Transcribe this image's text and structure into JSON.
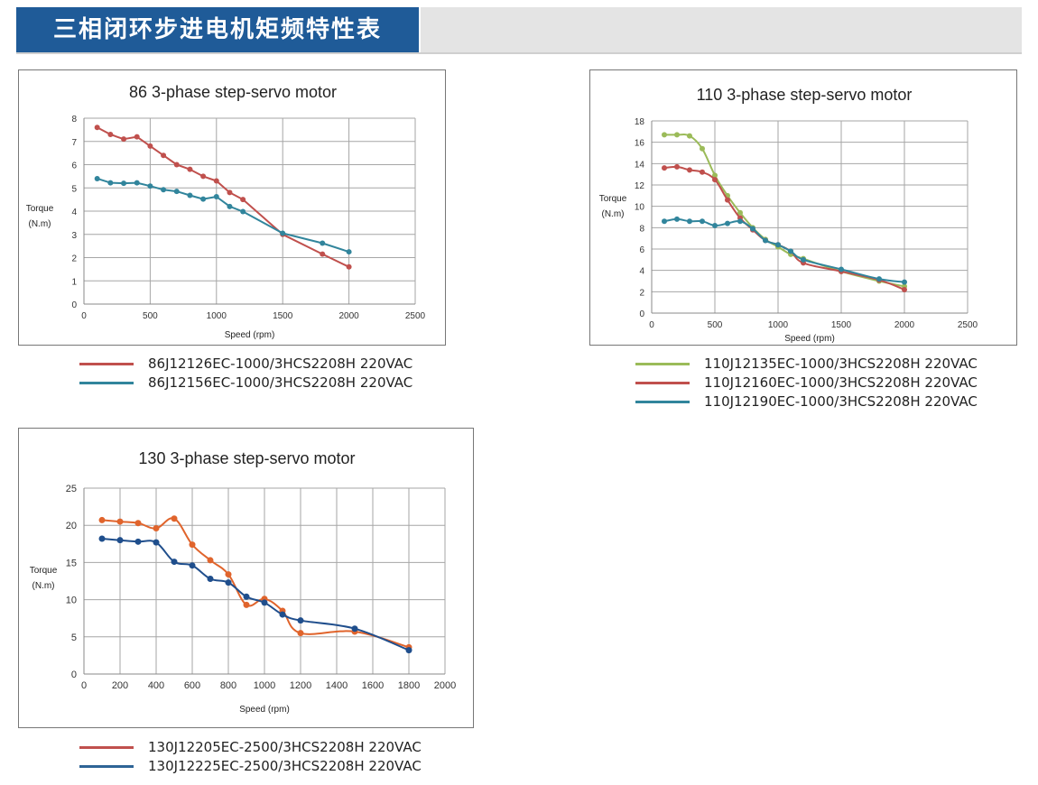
{
  "page": {
    "title": "三相闭环步进电机矩频特性表"
  },
  "colors": {
    "header_bg": "#1f5b98",
    "red": "#c0504d",
    "blue": "#31859c",
    "green": "#9bbb59",
    "orange": "#e0642c",
    "navy": "#1f4e8c",
    "grid": "#a6a6a6"
  },
  "chart_data": [
    {
      "id": "chart86",
      "type": "line",
      "title": "86 3-phase step-servo motor",
      "xlabel": "Speed (rpm)",
      "ylabel": "Torque",
      "ylabel2": "(N.m)",
      "xlim": [
        0,
        2500
      ],
      "ylim": [
        0,
        8
      ],
      "xticks": [
        0,
        500,
        1000,
        1500,
        2000,
        2500
      ],
      "yticks": [
        0,
        1,
        2,
        3,
        4,
        5,
        6,
        7,
        8
      ],
      "grid": true,
      "series": [
        {
          "name": "86J12126EC-1000/3HCS2208H  220VAC",
          "color": "#c0504d",
          "x": [
            100,
            200,
            300,
            400,
            500,
            600,
            700,
            800,
            900,
            1000,
            1100,
            1200,
            1500,
            1800,
            2000
          ],
          "y": [
            7.6,
            7.3,
            7.1,
            7.2,
            6.8,
            6.4,
            6.0,
            5.8,
            5.5,
            5.3,
            4.8,
            4.5,
            3.0,
            2.15,
            1.6
          ]
        },
        {
          "name": "86J12156EC-1000/3HCS2208H  220VAC",
          "color": "#31859c",
          "x": [
            100,
            200,
            300,
            400,
            500,
            600,
            700,
            800,
            900,
            1000,
            1100,
            1200,
            1500,
            1800,
            2000
          ],
          "y": [
            5.4,
            5.22,
            5.2,
            5.22,
            5.08,
            4.92,
            4.85,
            4.68,
            4.52,
            4.62,
            4.2,
            3.98,
            3.05,
            2.62,
            2.25
          ]
        }
      ]
    },
    {
      "id": "chart110",
      "type": "line",
      "title": "110 3-phase step-servo motor",
      "xlabel": "Speed (rpm)",
      "ylabel": "Torque",
      "ylabel2": "(N.m)",
      "xlim": [
        0,
        2500
      ],
      "ylim": [
        0,
        18
      ],
      "xticks": [
        0,
        500,
        1000,
        1500,
        2000,
        2500
      ],
      "yticks": [
        0,
        2,
        4,
        6,
        8,
        10,
        12,
        14,
        16,
        18
      ],
      "grid": true,
      "series": [
        {
          "name": "110J12135EC-1000/3HCS2208H  220VAC",
          "color": "#9bbb59",
          "x": [
            100,
            200,
            300,
            400,
            500,
            600,
            700,
            800,
            900,
            1000,
            1100,
            1200,
            1500,
            1800,
            2000
          ],
          "y": [
            16.7,
            16.7,
            16.6,
            15.4,
            12.9,
            11.0,
            9.4,
            8.0,
            6.9,
            6.2,
            5.5,
            5.1,
            3.9,
            3.0,
            2.5
          ]
        },
        {
          "name": "110J12160EC-1000/3HCS2208H  220VAC",
          "color": "#c0504d",
          "x": [
            100,
            200,
            300,
            400,
            500,
            600,
            700,
            800,
            900,
            1000,
            1100,
            1200,
            1500,
            1800,
            2000
          ],
          "y": [
            13.6,
            13.7,
            13.4,
            13.2,
            12.5,
            10.6,
            8.9,
            7.8,
            6.8,
            6.4,
            5.8,
            4.7,
            3.9,
            3.1,
            2.2
          ]
        },
        {
          "name": "110J12190EC-1000/3HCS2208H  220VAC",
          "color": "#31859c",
          "x": [
            100,
            200,
            300,
            400,
            500,
            600,
            700,
            800,
            900,
            1000,
            1100,
            1200,
            1500,
            1800,
            2000
          ],
          "y": [
            8.6,
            8.8,
            8.6,
            8.6,
            8.2,
            8.4,
            8.6,
            7.9,
            6.8,
            6.4,
            5.8,
            5.0,
            4.1,
            3.2,
            2.9
          ]
        }
      ]
    },
    {
      "id": "chart130",
      "type": "line",
      "title": "130 3-phase step-servo motor",
      "xlabel": "Speed (rpm)",
      "ylabel": "Torque",
      "ylabel2": "(N.m)",
      "xlim": [
        0,
        2000
      ],
      "ylim": [
        0,
        25
      ],
      "xticks": [
        0,
        200,
        400,
        600,
        800,
        1000,
        1200,
        1400,
        1600,
        1800,
        2000
      ],
      "yticks": [
        0,
        5,
        10,
        15,
        20,
        25
      ],
      "grid": true,
      "series": [
        {
          "name": "130J12205EC-2500/3HCS2208H  220VAC",
          "color": "#e0642c",
          "legend_color": "#c0504d",
          "x": [
            100,
            200,
            300,
            400,
            500,
            600,
            700,
            800,
            900,
            1000,
            1100,
            1200,
            1500,
            1800
          ],
          "y": [
            20.7,
            20.5,
            20.3,
            19.6,
            20.9,
            17.4,
            15.3,
            13.4,
            9.3,
            10.1,
            8.5,
            5.5,
            5.7,
            3.6
          ]
        },
        {
          "name": "130J12225EC-2500/3HCS2208H  220VAC",
          "color": "#1f4e8c",
          "legend_color": "#2e6496",
          "x": [
            100,
            200,
            300,
            400,
            500,
            600,
            700,
            800,
            900,
            1000,
            1100,
            1200,
            1500,
            1800
          ],
          "y": [
            18.2,
            18.0,
            17.8,
            17.7,
            15.1,
            14.6,
            12.8,
            12.3,
            10.4,
            9.6,
            8.0,
            7.2,
            6.1,
            3.2
          ]
        }
      ]
    }
  ]
}
